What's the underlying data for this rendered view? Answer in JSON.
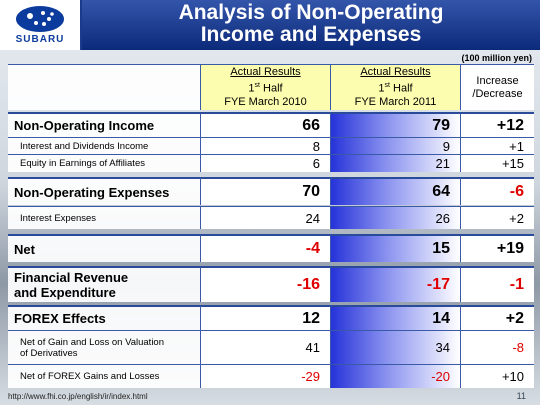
{
  "header": {
    "logo_text": "SUBARU",
    "title": "Analysis of Non-Operating\nIncome and Expenses"
  },
  "table": {
    "unit": "(100 million yen)",
    "columns": [
      {
        "line1": "Actual Results",
        "ordinal": "1",
        "suffix": "st",
        "line2": "Half",
        "line3": "FYE March 2010"
      },
      {
        "line1": "Actual Results",
        "ordinal": "1",
        "suffix": "st",
        "line2": "Half",
        "line3": "FYE March 2011"
      },
      {
        "line1": "Increase",
        "line3": "/Decrease"
      }
    ],
    "rows": [
      {
        "label": "Non-Operating Income",
        "values": [
          "66",
          "79",
          "+12"
        ]
      },
      {
        "label": "Interest and Dividends Income",
        "values": [
          "8",
          "9",
          "+1"
        ]
      },
      {
        "label": "Equity in Earnings of Affiliates",
        "values": [
          "6",
          "21",
          "+15"
        ]
      },
      {
        "label": "Non-Operating Expenses",
        "values": [
          "70",
          "64",
          "-6"
        ]
      },
      {
        "label": "Interest Expenses",
        "values": [
          "24",
          "26",
          "+2"
        ]
      },
      {
        "label": "Net",
        "values": [
          "-4",
          "15",
          "+19"
        ]
      },
      {
        "label": "Financial Revenue\nand Expenditure",
        "values": [
          "-16",
          "-17",
          "-1"
        ]
      },
      {
        "label": "FOREX Effects",
        "values": [
          "12",
          "14",
          "+2"
        ]
      },
      {
        "label": "Net of Gain and Loss on Valuation\nof Derivatives",
        "values": [
          "41",
          "34",
          "-8"
        ]
      },
      {
        "label": "Net of FOREX Gains and Losses",
        "values": [
          "-29",
          "-20",
          "+10"
        ]
      }
    ]
  },
  "footer": {
    "url": "http://www.fhi.co.jp/english/ir/index.html",
    "page": "11"
  }
}
